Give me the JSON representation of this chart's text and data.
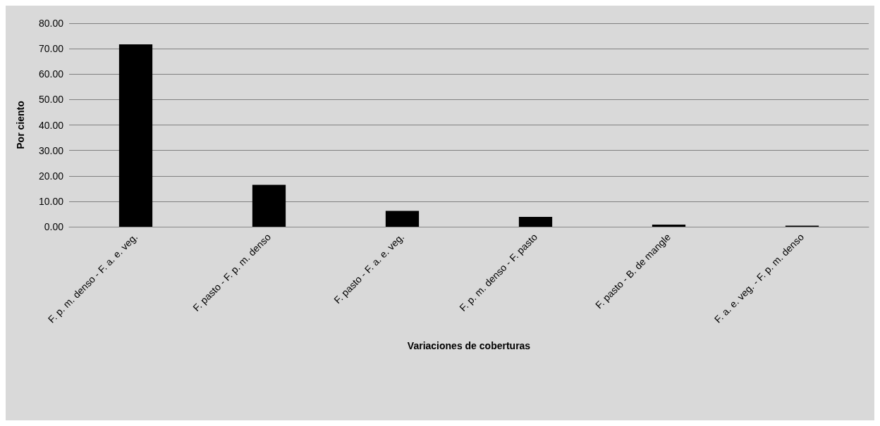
{
  "chart_data": {
    "type": "bar",
    "xlabel": "Variaciones de coberturas",
    "ylabel": "Por ciento",
    "categories": [
      "F. p. m. denso - F. a. e. veg.",
      "F. pasto - F. p. m. denso",
      "F. pasto - F. a. e. veg.",
      "F. p. m. denso - F. pasto",
      "F. pasto - B. de mangle",
      "F. a. e. veg. - F. p. m. denso"
    ],
    "values": [
      71.7,
      16.5,
      6.2,
      3.9,
      0.8,
      0.4
    ],
    "color": "#000000",
    "ylim": [
      0,
      80
    ],
    "yticks": [
      {
        "value": 0,
        "label": "0.00"
      },
      {
        "value": 10,
        "label": "10.00"
      },
      {
        "value": 20,
        "label": "20.00"
      },
      {
        "value": 30,
        "label": "30.00"
      },
      {
        "value": 40,
        "label": "40.00"
      },
      {
        "value": 50,
        "label": "50.00"
      },
      {
        "value": 60,
        "label": "60.00"
      },
      {
        "value": 70,
        "label": "70.00"
      },
      {
        "value": 80,
        "label": "80.00"
      }
    ],
    "grid": "y"
  }
}
